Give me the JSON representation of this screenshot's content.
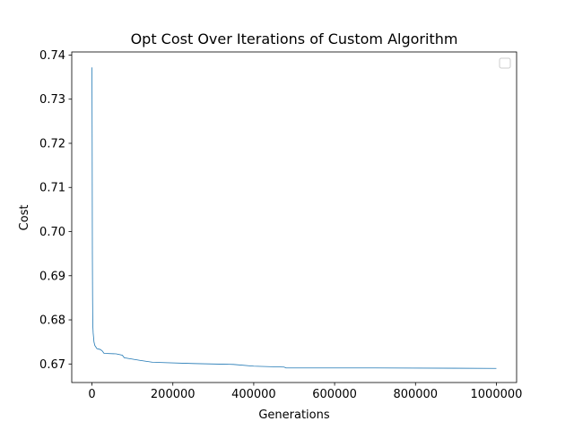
{
  "chart_data": {
    "type": "line",
    "title": "Opt Cost Over Iterations of Custom Algorithm",
    "xlabel": "Generations",
    "ylabel": "Cost",
    "xlim": [
      -50000,
      1050000
    ],
    "ylim": [
      0.6658,
      0.7407
    ],
    "xticks": [
      0,
      200000,
      400000,
      600000,
      800000,
      1000000
    ],
    "xtick_labels": [
      "0",
      "200000",
      "400000",
      "600000",
      "800000",
      "1000000"
    ],
    "yticks": [
      0.67,
      0.68,
      0.69,
      0.7,
      0.71,
      0.72,
      0.73,
      0.74
    ],
    "ytick_labels": [
      "0.67",
      "0.68",
      "0.69",
      "0.70",
      "0.71",
      "0.72",
      "0.73",
      "0.74"
    ],
    "grid": false,
    "legend": {
      "placement": "upper-right",
      "entries": []
    },
    "line_color": "#1f77b4",
    "series": [
      {
        "x": [
          0,
          500,
          1000,
          1500,
          2000,
          3000,
          4000,
          5000,
          7000,
          10000,
          12000,
          15000,
          20000,
          25000,
          30000,
          60000,
          75000,
          80000,
          100000,
          120000,
          150000,
          250000,
          350000,
          400000,
          475000,
          480000,
          700000,
          1000000
        ],
        "y": [
          0.7372,
          0.72,
          0.695,
          0.685,
          0.679,
          0.677,
          0.676,
          0.675,
          0.6742,
          0.6738,
          0.6735,
          0.6734,
          0.6733,
          0.673,
          0.6724,
          0.6723,
          0.672,
          0.6714,
          0.6711,
          0.6708,
          0.6704,
          0.6701,
          0.6699,
          0.6695,
          0.6693,
          0.6691,
          0.6691,
          0.669
        ]
      }
    ]
  }
}
